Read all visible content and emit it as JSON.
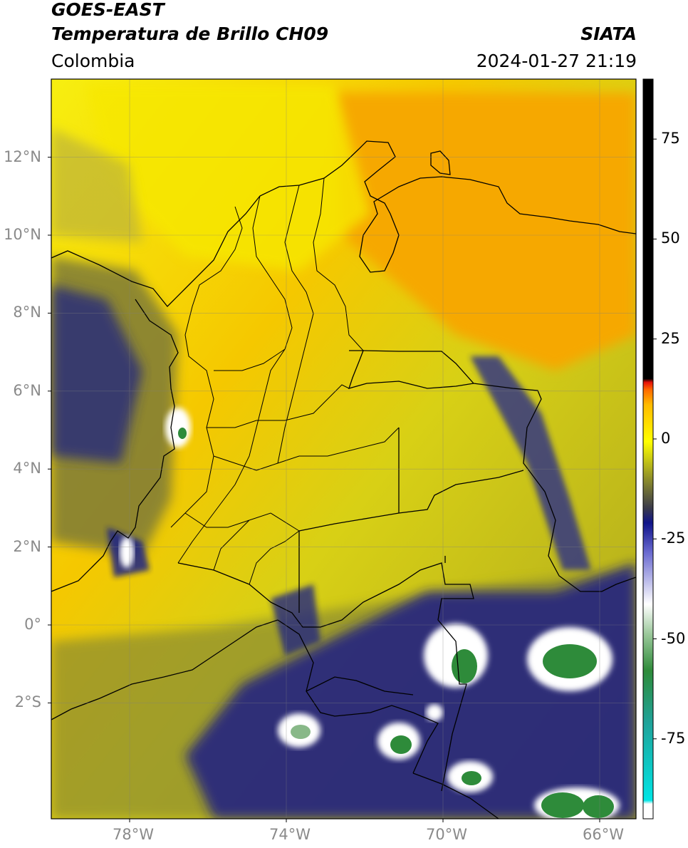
{
  "header": {
    "satellite": "GOES-EAST",
    "product": "Temperatura de Brillo CH09",
    "region": "Colombia",
    "org": "SIATA",
    "datetime": "2024-01-27 21:19"
  },
  "map": {
    "lon_range": [
      -80,
      -65
    ],
    "lat_range": [
      -5,
      14
    ],
    "lat_ticks": [
      {
        "label": "12°N",
        "value": 12
      },
      {
        "label": "10°N",
        "value": 10
      },
      {
        "label": "8°N",
        "value": 8
      },
      {
        "label": "6°N",
        "value": 6
      },
      {
        "label": "4°N",
        "value": 4
      },
      {
        "label": "2°N",
        "value": 2
      },
      {
        "label": "0°",
        "value": 0
      },
      {
        "label": "2°S",
        "value": -2
      }
    ],
    "lon_ticks": [
      {
        "label": "78°W",
        "value": -78
      },
      {
        "label": "74°W",
        "value": -74
      },
      {
        "label": "70°W",
        "value": -70
      },
      {
        "label": "66°W",
        "value": -66
      }
    ],
    "grid": true
  },
  "colorbar": {
    "range": [
      -95,
      90
    ],
    "ticks": [
      {
        "label": "75",
        "value": 75
      },
      {
        "label": "50",
        "value": 50
      },
      {
        "label": "25",
        "value": 25
      },
      {
        "label": "0",
        "value": 0
      },
      {
        "label": "-25",
        "value": -25
      },
      {
        "label": "-50",
        "value": -50
      },
      {
        "label": "-75",
        "value": -75
      }
    ],
    "colors": {
      "warm": "#000000",
      "red": "#e8120a",
      "orange": "#ffa500",
      "yellow": "#ffff00",
      "olive": "#8f8f2a",
      "navy": "#10148a",
      "white": "#ffffff",
      "green": "#2e8b3a",
      "cyan": "#00e5e5"
    }
  }
}
